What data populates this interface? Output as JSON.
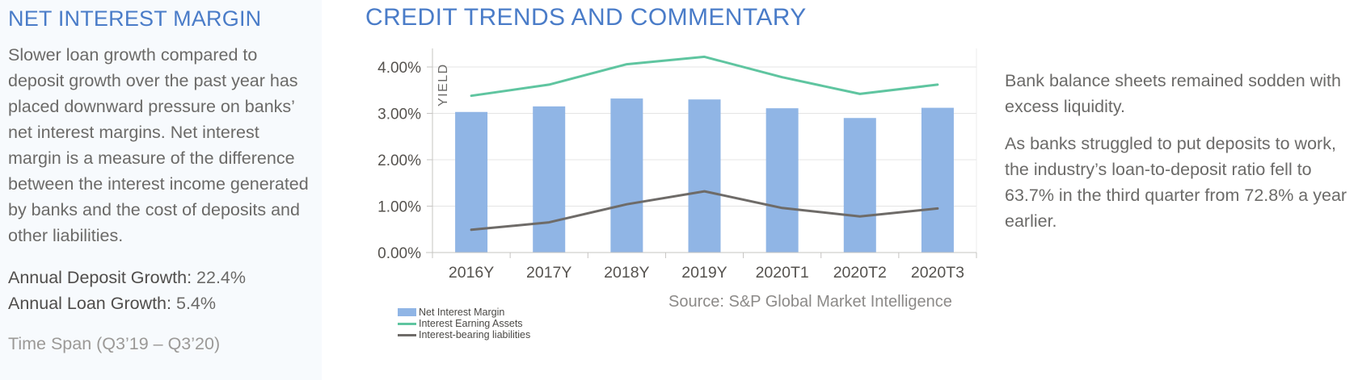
{
  "left_panel": {
    "title": "NET INTEREST MARGIN",
    "body": "Slower loan growth compared to deposit growth over the past year has placed downward pressure on banks’ net interest margins. Net interest margin is a measure of the difference between the interest income generated by banks and the cost of deposits and other liabilities.",
    "stats": [
      {
        "label": "Annual Deposit Growth:",
        "value": "22.4%"
      },
      {
        "label": "Annual Loan Growth:",
        "value": "5.4%"
      }
    ],
    "time_span": "Time Span (Q3’19 – Q3’20)"
  },
  "main": {
    "title": "CREDIT TRENDS AND COMMENTARY"
  },
  "commentary": {
    "paragraphs": [
      "Bank balance sheets remained sodden with excess liquidity.",
      "As banks struggled to put deposits to work, the industry’s loan-to-deposit ratio fell to 63.7% in the third quarter from 72.8% a year earlier."
    ]
  },
  "chart_data": {
    "type": "combo-bar-line",
    "categories": [
      "2016Y",
      "2017Y",
      "2018Y",
      "2019Y",
      "2020T1",
      "2020T2",
      "2020T3"
    ],
    "series": [
      {
        "name": "Net Interest Margin",
        "render": "bar",
        "color": "#90B5E5",
        "values": [
          3.03,
          3.15,
          3.32,
          3.3,
          3.11,
          2.9,
          3.12
        ]
      },
      {
        "name": "Interest Earning Assets",
        "render": "line",
        "color": "#5FC5A0",
        "values": [
          3.38,
          3.62,
          4.06,
          4.22,
          3.78,
          3.42,
          3.62
        ]
      },
      {
        "name": "Interest-bearing liabilities",
        "render": "line",
        "color": "#6E6B68",
        "values": [
          0.49,
          0.65,
          1.04,
          1.32,
          0.96,
          0.78,
          0.95
        ]
      }
    ],
    "ylabel": "YIELD",
    "ylim": [
      0,
      4.4
    ],
    "yticks": [
      "0.00%",
      "1.00%",
      "2.00%",
      "3.00%",
      "4.00%"
    ],
    "grid": true,
    "legend_position": "bottom-left",
    "source": "Source: S&P Global Market Intelligence"
  },
  "colors": {
    "heading_blue": "#4A7CC8",
    "body_gray": "#6B6A68",
    "panel_background": "#F7FAFD",
    "bar_blue": "#90B5E5",
    "line_green": "#5FC5A0",
    "line_gray": "#6E6B68"
  }
}
